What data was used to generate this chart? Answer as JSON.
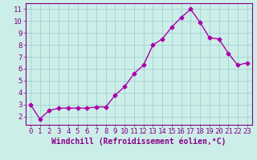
{
  "x": [
    0,
    1,
    2,
    3,
    4,
    5,
    6,
    7,
    8,
    9,
    10,
    11,
    12,
    13,
    14,
    15,
    16,
    17,
    18,
    19,
    20,
    21,
    22,
    23
  ],
  "y": [
    3.0,
    1.8,
    2.5,
    2.7,
    2.7,
    2.7,
    2.7,
    2.8,
    2.8,
    3.8,
    4.5,
    5.6,
    6.3,
    8.0,
    8.5,
    9.5,
    10.3,
    11.0,
    9.9,
    8.6,
    8.5,
    7.3,
    6.3,
    6.5
  ],
  "line_color": "#aa00aa",
  "marker": "D",
  "marker_size": 2.5,
  "bg_color": "#cceee8",
  "grid_color": "#99cccc",
  "xlabel": "Windchill (Refroidissement éolien,°C)",
  "xlim": [
    -0.5,
    23.5
  ],
  "ylim": [
    1.3,
    11.5
  ],
  "yticks": [
    2,
    3,
    4,
    5,
    6,
    7,
    8,
    9,
    10,
    11
  ],
  "xticks": [
    0,
    1,
    2,
    3,
    4,
    5,
    6,
    7,
    8,
    9,
    10,
    11,
    12,
    13,
    14,
    15,
    16,
    17,
    18,
    19,
    20,
    21,
    22,
    23
  ],
  "tick_color": "#880088",
  "label_color": "#880088",
  "spine_color": "#880088",
  "font_size": 6.5,
  "xlabel_fontsize": 7.0
}
